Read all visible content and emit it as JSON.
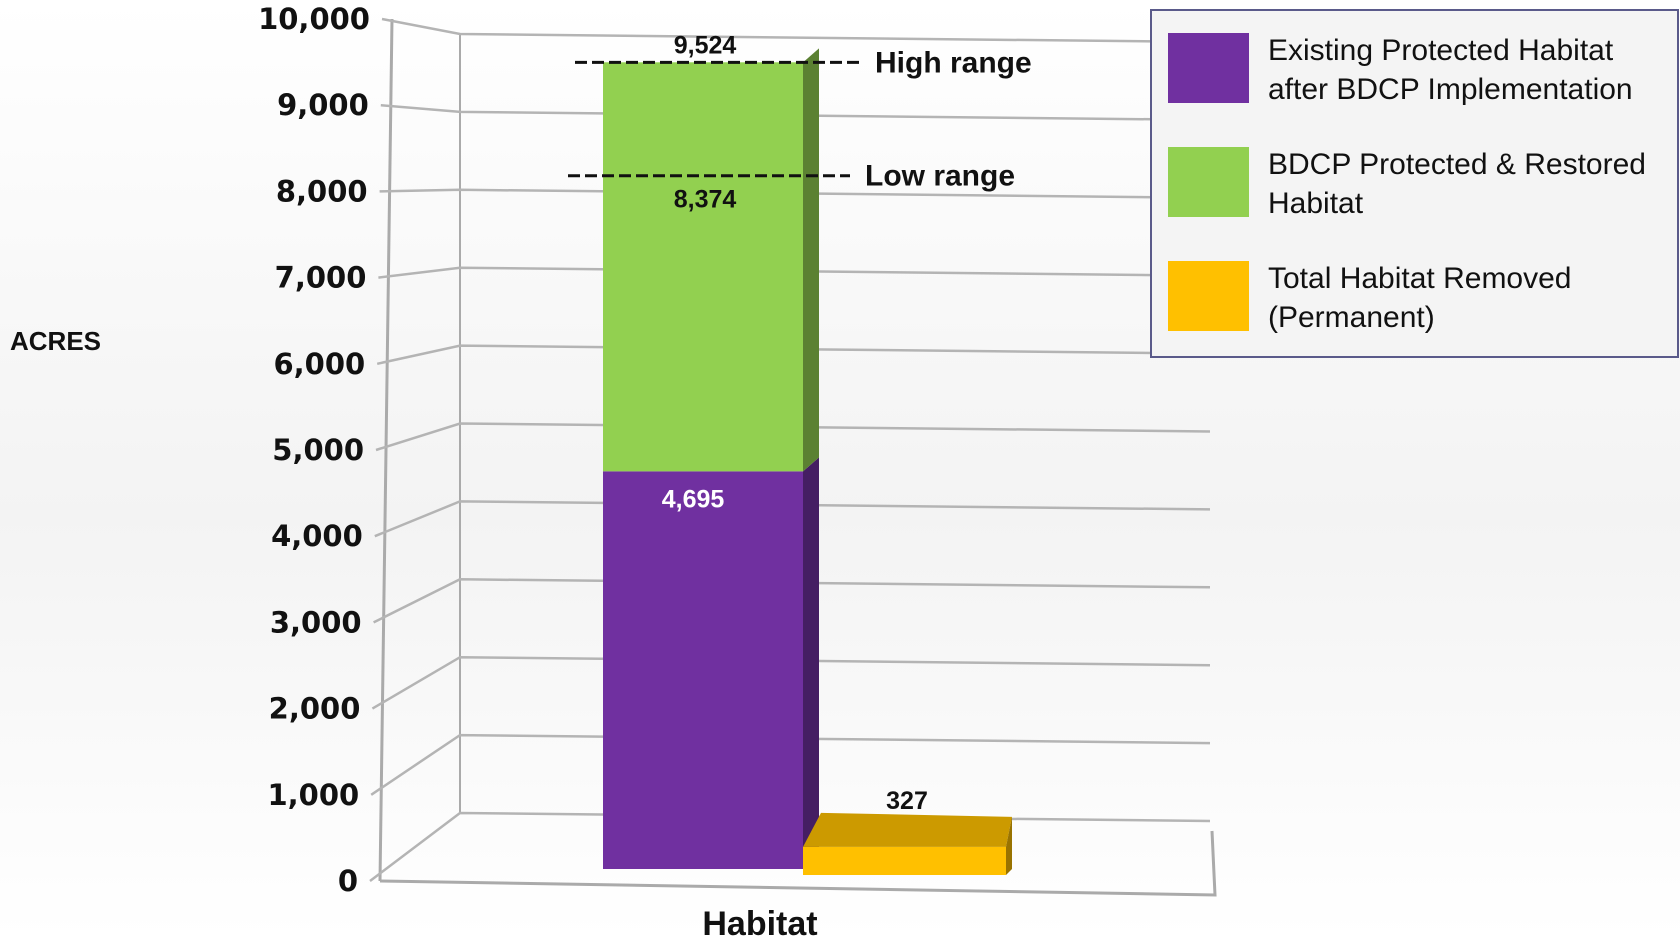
{
  "chart_data": {
    "type": "bar",
    "stacked": true,
    "ylabel": "ACRES",
    "xlabel": "",
    "categories": [
      "Habitat"
    ],
    "ylim": [
      0,
      10000
    ],
    "yticks": [
      "0",
      "1,000",
      "2,000",
      "3,000",
      "4,000",
      "5,000",
      "6,000",
      "7,000",
      "8,000",
      "9,000",
      "10,000"
    ],
    "grid": true,
    "legend_position": "top-right",
    "series": [
      {
        "name": "Existing Protected Habitat after BDCP Implementation",
        "values": [
          4695
        ],
        "label": "4,695",
        "color": "#7030a0"
      },
      {
        "name": "BDCP Protected & Restored Habitat",
        "values": [
          4829
        ],
        "label": "9,524",
        "color": "#92d050"
      },
      {
        "name": "Total Habitat Removed (Permanent)",
        "values": [
          327
        ],
        "label": "327",
        "color": "#ffc000"
      }
    ],
    "reference_lines": [
      {
        "label": "High range",
        "value": 9524,
        "value_label": "9,524"
      },
      {
        "label": "Low range",
        "value": 8374,
        "value_label": "8,374"
      }
    ]
  }
}
